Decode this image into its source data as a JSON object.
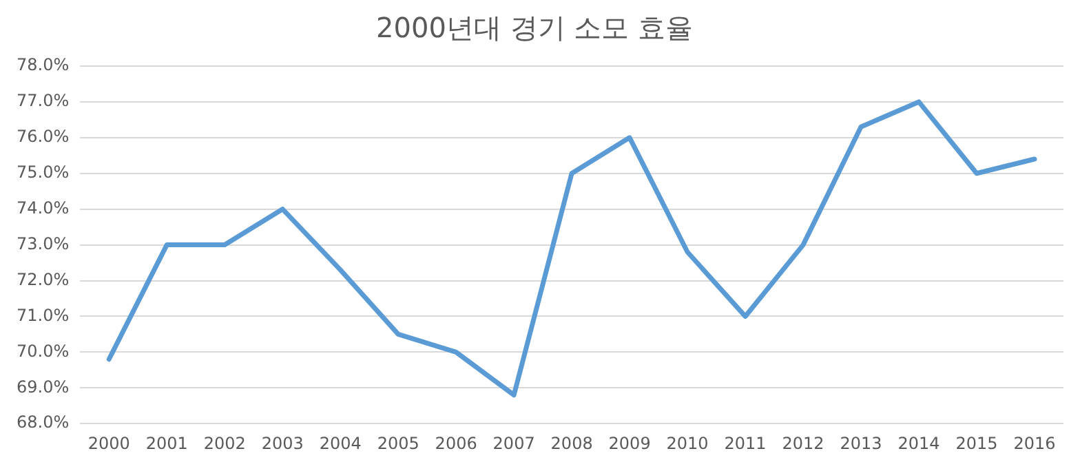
{
  "chart_data": {
    "type": "line",
    "title": "2000년대 경기 소모 효율",
    "categories": [
      "2000",
      "2001",
      "2002",
      "2003",
      "2004",
      "2005",
      "2006",
      "2007",
      "2008",
      "2009",
      "2010",
      "2011",
      "2012",
      "2013",
      "2014",
      "2015",
      "2016"
    ],
    "series": [
      {
        "color": "#5b9bd5",
        "values": [
          69.8,
          73.0,
          73.0,
          74.0,
          72.3,
          70.5,
          70.0,
          68.8,
          75.0,
          76.0,
          72.8,
          71.0,
          73.0,
          76.3,
          77.0,
          75.0,
          75.4
        ]
      }
    ],
    "ylim": [
      68,
      78
    ],
    "yticks": [
      {
        "value": 68,
        "label": "68.0%"
      },
      {
        "value": 69,
        "label": "69.0%"
      },
      {
        "value": 70,
        "label": "70.0%"
      },
      {
        "value": 71,
        "label": "71.0%"
      },
      {
        "value": 72,
        "label": "72.0%"
      },
      {
        "value": 73,
        "label": "73.0%"
      },
      {
        "value": 74,
        "label": "74.0%"
      },
      {
        "value": 75,
        "label": "75.0%"
      },
      {
        "value": 76,
        "label": "76.0%"
      },
      {
        "value": 77,
        "label": "77.0%"
      },
      {
        "value": 78,
        "label": "78.0%"
      }
    ],
    "grid": "y",
    "legend": false,
    "marker": "none",
    "line_style": "solid"
  }
}
